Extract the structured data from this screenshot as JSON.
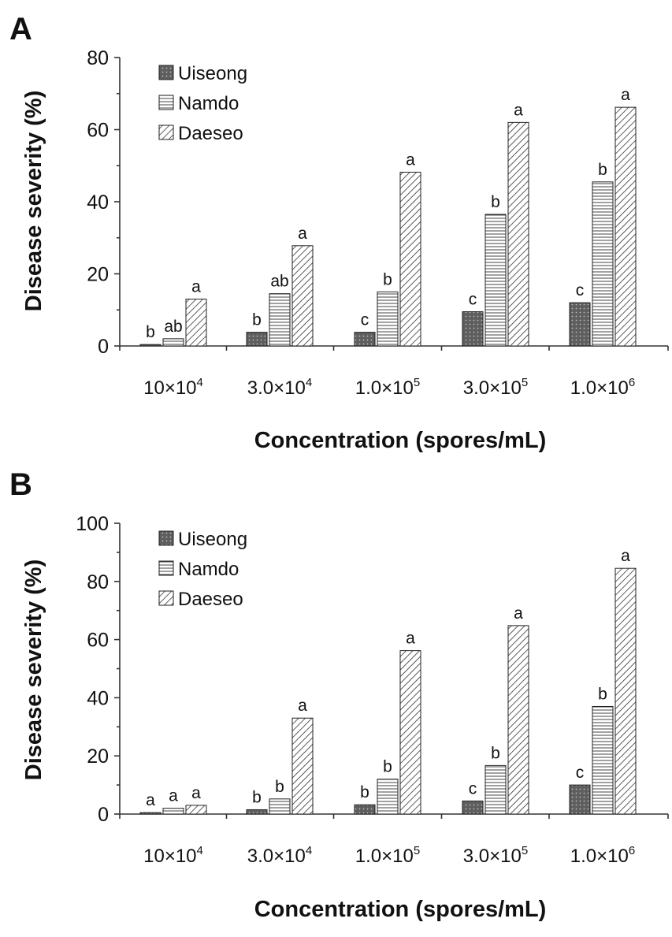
{
  "colors": {
    "uiseong": "#5a5a5a",
    "namdo_bg": "#ffffff",
    "daeseo_bg": "#ffffff",
    "stroke": "#222222"
  },
  "chart_data": [
    {
      "panel_label": "A",
      "type": "bar",
      "xlabel": "Concentration (spores/mL)",
      "ylabel": "Disease severity (%)",
      "ylim": [
        0,
        80
      ],
      "yticks": [
        "0",
        "20",
        "40",
        "60",
        "80"
      ],
      "yticks_values": [
        0,
        20,
        40,
        60,
        80
      ],
      "categories": [
        {
          "base": "10×10",
          "exp": "4"
        },
        {
          "base": "3.0×10",
          "exp": "4"
        },
        {
          "base": "1.0×10",
          "exp": "5"
        },
        {
          "base": "3.0×10",
          "exp": "5"
        },
        {
          "base": "1.0×10",
          "exp": "6"
        }
      ],
      "legend_position": "top-left",
      "series": [
        {
          "name": "Uiseong",
          "values": [
            0.4,
            3.8,
            3.8,
            9.5,
            12
          ],
          "letters": [
            "b",
            "b",
            "c",
            "c",
            "c"
          ]
        },
        {
          "name": "Namdo",
          "values": [
            2,
            14.5,
            15,
            36.5,
            45.5
          ],
          "letters": [
            "ab",
            "ab",
            "b",
            "b",
            "b"
          ]
        },
        {
          "name": "Daeseo",
          "values": [
            13,
            27.8,
            48.2,
            62,
            66.2
          ],
          "letters": [
            "a",
            "a",
            "a",
            "a",
            "a"
          ]
        }
      ]
    },
    {
      "panel_label": "B",
      "type": "bar",
      "xlabel": "Concentration (spores/mL)",
      "ylabel": "Disease severity (%)",
      "ylim": [
        0,
        100
      ],
      "yticks": [
        "0",
        "20",
        "40",
        "60",
        "80",
        "100"
      ],
      "yticks_values": [
        0,
        20,
        40,
        60,
        80,
        100
      ],
      "categories": [
        {
          "base": "10×10",
          "exp": "4"
        },
        {
          "base": "3.0×10",
          "exp": "4"
        },
        {
          "base": "1.0×10",
          "exp": "5"
        },
        {
          "base": "3.0×10",
          "exp": "5"
        },
        {
          "base": "1.0×10",
          "exp": "6"
        }
      ],
      "legend_position": "top-left",
      "series": [
        {
          "name": "Uiseong",
          "values": [
            0.5,
            1.5,
            3.2,
            4.5,
            10
          ],
          "letters": [
            "a",
            "b",
            "b",
            "c",
            "c"
          ]
        },
        {
          "name": "Namdo",
          "values": [
            2,
            5.2,
            12,
            16.7,
            37
          ],
          "letters": [
            "a",
            "b",
            "b",
            "b",
            "b"
          ]
        },
        {
          "name": "Daeseo",
          "values": [
            3,
            33,
            56.2,
            64.8,
            84.5
          ],
          "letters": [
            "a",
            "a",
            "a",
            "a",
            "a"
          ]
        }
      ]
    }
  ]
}
